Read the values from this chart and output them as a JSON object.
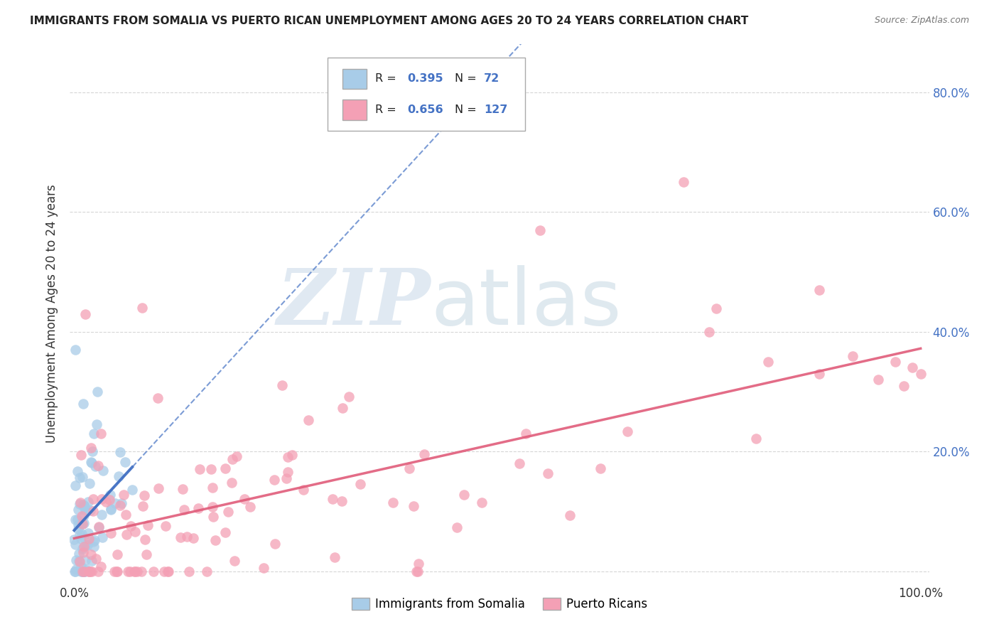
{
  "title": "IMMIGRANTS FROM SOMALIA VS PUERTO RICAN UNEMPLOYMENT AMONG AGES 20 TO 24 YEARS CORRELATION CHART",
  "source": "Source: ZipAtlas.com",
  "ylabel": "Unemployment Among Ages 20 to 24 years",
  "legend1_label": "Immigrants from Somalia",
  "legend2_label": "Puerto Ricans",
  "R1": 0.395,
  "N1": 72,
  "R2": 0.656,
  "N2": 127,
  "color_blue": "#a8cce8",
  "color_pink": "#f4a0b5",
  "trend_blue": "#4472c4",
  "trend_pink": "#e05c7a",
  "watermark_zip": "ZIP",
  "watermark_atlas": "atlas",
  "xlim": [
    0.0,
    1.0
  ],
  "ylim": [
    0.0,
    0.85
  ],
  "yticks": [
    0.0,
    0.2,
    0.4,
    0.6,
    0.8
  ],
  "ytick_labels": [
    "",
    "20.0%",
    "40.0%",
    "60.0%",
    "80.0%"
  ],
  "xtick_left": "0.0%",
  "xtick_right": "100.0%",
  "blue_intercept": 0.04,
  "blue_slope": 1.8,
  "pink_intercept": 0.05,
  "pink_slope": 0.28
}
